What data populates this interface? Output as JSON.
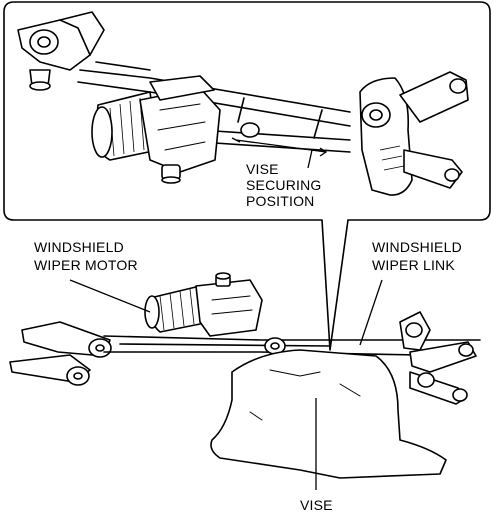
{
  "labels": {
    "vise_securing": [
      "VISE",
      "SECURING",
      "POSITION"
    ],
    "motor": [
      "WINDSHIELD",
      "WIPER MOTOR"
    ],
    "link": [
      "WINDSHIELD",
      "WIPER LINK"
    ],
    "vise": "VISE"
  },
  "colors": {
    "ink": "#000000",
    "paper": "#ffffff"
  }
}
